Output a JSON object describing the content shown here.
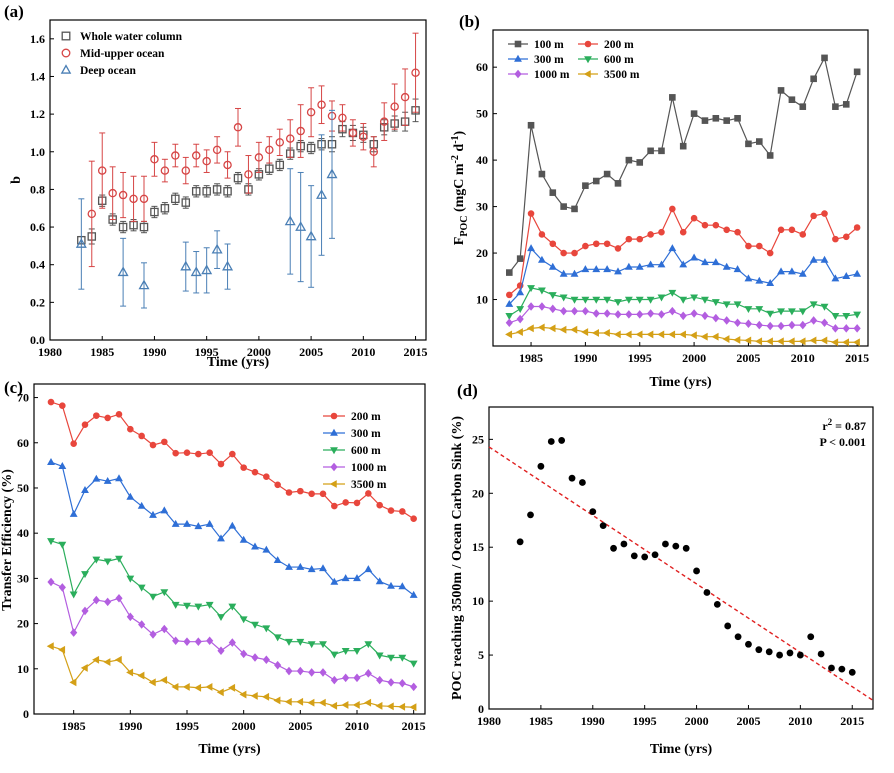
{
  "chart_data": [
    {
      "id": "a",
      "type": "scatter",
      "panel_label": "(a)",
      "xlabel": "Time (yrs)",
      "ylabel": "b",
      "xlim": [
        1980,
        2016
      ],
      "ylim": [
        0.0,
        1.7
      ],
      "xticks": [
        1980,
        1985,
        1990,
        1995,
        2000,
        2005,
        2010,
        2015
      ],
      "yticks": [
        0.0,
        0.2,
        0.4,
        0.6,
        0.8,
        1.0,
        1.2,
        1.4,
        1.6
      ],
      "legend_position": "top-left",
      "series": [
        {
          "name": "Whole water column",
          "marker": "square",
          "color": "#555555",
          "x": [
            1983,
            1984,
            1985,
            1986,
            1987,
            1988,
            1989,
            1990,
            1991,
            1992,
            1993,
            1994,
            1995,
            1996,
            1997,
            1998,
            1999,
            2000,
            2001,
            2002,
            2003,
            2004,
            2005,
            2006,
            2007,
            2008,
            2009,
            2010,
            2011,
            2012,
            2013,
            2014,
            2015
          ],
          "y": [
            0.53,
            0.55,
            0.74,
            0.64,
            0.6,
            0.61,
            0.6,
            0.68,
            0.7,
            0.75,
            0.73,
            0.79,
            0.79,
            0.8,
            0.79,
            0.86,
            0.8,
            0.88,
            0.91,
            0.93,
            0.99,
            1.03,
            1.02,
            1.04,
            1.04,
            1.12,
            1.1,
            1.09,
            1.04,
            1.13,
            1.15,
            1.16,
            1.22
          ],
          "err": [
            0.02,
            0.04,
            0.03,
            0.03,
            0.03,
            0.03,
            0.03,
            0.03,
            0.03,
            0.03,
            0.03,
            0.03,
            0.03,
            0.03,
            0.03,
            0.03,
            0.03,
            0.03,
            0.03,
            0.03,
            0.03,
            0.03,
            0.03,
            0.03,
            0.04,
            0.04,
            0.04,
            0.04,
            0.04,
            0.04,
            0.04,
            0.05,
            0.06
          ]
        },
        {
          "name": "Mid-upper ocean",
          "marker": "circle",
          "color": "#d64545",
          "x": [
            1984,
            1985,
            1986,
            1987,
            1988,
            1989,
            1990,
            1991,
            1992,
            1993,
            1994,
            1995,
            1996,
            1997,
            1998,
            1999,
            2000,
            2001,
            2002,
            2003,
            2004,
            2005,
            2006,
            2007,
            2008,
            2009,
            2010,
            2011,
            2012,
            2013,
            2014,
            2015
          ],
          "y": [
            0.67,
            0.9,
            0.78,
            0.77,
            0.75,
            0.75,
            0.96,
            0.9,
            0.98,
            0.9,
            0.98,
            0.95,
            1.01,
            0.93,
            1.13,
            0.88,
            0.97,
            1.01,
            1.05,
            1.07,
            1.11,
            1.21,
            1.25,
            1.19,
            1.18,
            1.1,
            1.08,
            1.0,
            1.16,
            1.24,
            1.29,
            1.42
          ],
          "err": [
            0.28,
            0.2,
            0.14,
            0.12,
            0.12,
            0.12,
            0.09,
            0.06,
            0.06,
            0.07,
            0.06,
            0.06,
            0.07,
            0.07,
            0.1,
            0.1,
            0.08,
            0.07,
            0.07,
            0.1,
            0.14,
            0.13,
            0.1,
            0.08,
            0.07,
            0.07,
            0.07,
            0.08,
            0.1,
            0.12,
            0.15,
            0.21
          ]
        },
        {
          "name": "Deep ocean",
          "marker": "triangle",
          "color": "#4a7fb5",
          "x": [
            1983,
            1987,
            1989,
            1993,
            1994,
            1995,
            1996,
            1997,
            2003,
            2004,
            2005,
            2006,
            2007
          ],
          "y": [
            0.51,
            0.36,
            0.29,
            0.39,
            0.36,
            0.37,
            0.48,
            0.39,
            0.63,
            0.6,
            0.55,
            0.77,
            0.88
          ],
          "err": [
            0.24,
            0.18,
            0.12,
            0.13,
            0.11,
            0.12,
            0.1,
            0.12,
            0.28,
            0.29,
            0.27,
            0.32,
            0.34
          ]
        }
      ]
    },
    {
      "id": "b",
      "type": "line",
      "panel_label": "(b)",
      "xlabel": "Time (yrs)",
      "ylabel_main": "F",
      "ylabel_sub": "POC",
      "ylabel_units": " (mgC m",
      "ylabel_exp1": "-2",
      "ylabel_mid": " d",
      "ylabel_exp2": "-1",
      "ylabel_end": ")",
      "xlim": [
        1981.5,
        2016
      ],
      "ylim": [
        0,
        68
      ],
      "xticks": [
        1985,
        1990,
        1995,
        2000,
        2005,
        2010,
        2015
      ],
      "yticks": [
        10,
        20,
        30,
        40,
        50,
        60
      ],
      "legend_position": "top-left",
      "x": [
        1983,
        1984,
        1985,
        1986,
        1987,
        1988,
        1989,
        1990,
        1991,
        1992,
        1993,
        1994,
        1995,
        1996,
        1997,
        1998,
        1999,
        2000,
        2001,
        2002,
        2003,
        2004,
        2005,
        2006,
        2007,
        2008,
        2009,
        2010,
        2011,
        2012,
        2013,
        2014,
        2015
      ],
      "series": [
        {
          "name": "100 m",
          "marker": "square",
          "color": "#555555",
          "values": [
            15.8,
            18.8,
            47.5,
            37.0,
            33.0,
            30.0,
            29.5,
            34.5,
            35.5,
            37.0,
            35.0,
            40.0,
            39.5,
            42.0,
            42.0,
            53.5,
            43.0,
            50.0,
            48.5,
            49.0,
            48.5,
            49.0,
            43.5,
            44.0,
            41.0,
            55.0,
            53.0,
            51.5,
            57.5,
            62.0,
            51.5,
            52.0,
            59.0
          ]
        },
        {
          "name": "200 m",
          "marker": "circle",
          "color": "#e8463c",
          "values": [
            11.0,
            13.0,
            28.5,
            24.0,
            22.0,
            20.0,
            20.0,
            21.5,
            22.0,
            22.0,
            21.0,
            23.0,
            23.0,
            24.0,
            24.5,
            29.5,
            24.5,
            27.5,
            26.0,
            26.0,
            25.0,
            24.5,
            21.5,
            21.5,
            20.0,
            25.0,
            25.0,
            24.0,
            28.0,
            28.5,
            23.0,
            23.5,
            25.5
          ]
        },
        {
          "name": "300 m",
          "marker": "triangle-up",
          "color": "#2f6fd6",
          "values": [
            9.0,
            11.5,
            21.0,
            18.5,
            17.0,
            15.5,
            15.5,
            16.5,
            16.5,
            16.5,
            16.0,
            17.0,
            17.0,
            17.5,
            17.5,
            21.0,
            17.5,
            19.0,
            18.0,
            18.0,
            17.0,
            16.5,
            14.5,
            14.0,
            13.5,
            16.0,
            16.0,
            15.5,
            18.5,
            18.5,
            14.5,
            15.0,
            15.5
          ]
        },
        {
          "name": "600 m",
          "marker": "triangle-down",
          "color": "#2bae5c",
          "values": [
            6.5,
            8.0,
            12.5,
            12.0,
            11.0,
            10.5,
            10.0,
            10.0,
            10.0,
            10.0,
            9.5,
            10.0,
            10.0,
            10.0,
            10.5,
            11.5,
            10.0,
            10.5,
            10.0,
            9.5,
            9.0,
            9.0,
            8.0,
            8.0,
            7.0,
            7.5,
            7.5,
            7.5,
            9.0,
            8.5,
            6.5,
            6.5,
            6.8
          ]
        },
        {
          "name": "1000 m",
          "marker": "diamond",
          "color": "#b35ee0",
          "values": [
            5.0,
            5.8,
            8.5,
            8.5,
            8.0,
            7.5,
            7.5,
            7.5,
            7.0,
            7.0,
            6.8,
            6.8,
            6.8,
            7.0,
            6.8,
            7.5,
            6.5,
            7.0,
            6.5,
            6.0,
            5.5,
            5.0,
            4.8,
            4.5,
            4.3,
            4.3,
            4.5,
            4.5,
            5.5,
            5.0,
            3.8,
            3.8,
            3.8
          ]
        },
        {
          "name": "3500 m",
          "marker": "triangle-left",
          "color": "#d4a017",
          "values": [
            2.5,
            3.0,
            3.8,
            4.0,
            3.8,
            3.5,
            3.5,
            3.0,
            2.8,
            2.8,
            2.5,
            2.5,
            2.5,
            2.5,
            2.5,
            2.5,
            2.5,
            2.3,
            2.0,
            2.0,
            1.5,
            1.3,
            1.2,
            1.0,
            1.0,
            1.0,
            1.0,
            1.0,
            1.2,
            1.2,
            0.8,
            0.8,
            0.8
          ]
        }
      ]
    },
    {
      "id": "c",
      "type": "line",
      "panel_label": "(c)",
      "xlabel": "Time (yrs)",
      "ylabel": "Transfer Efficiency (%)",
      "xlim": [
        1981.5,
        2016
      ],
      "ylim": [
        0,
        73
      ],
      "xticks": [
        1985,
        1990,
        1995,
        2000,
        2005,
        2010,
        2015
      ],
      "yticks": [
        0,
        10,
        20,
        30,
        40,
        50,
        60,
        70
      ],
      "legend_position": "top-right",
      "x": [
        1983,
        1984,
        1985,
        1986,
        1987,
        1988,
        1989,
        1990,
        1991,
        1992,
        1993,
        1994,
        1995,
        1996,
        1997,
        1998,
        1999,
        2000,
        2001,
        2002,
        2003,
        2004,
        2005,
        2006,
        2007,
        2008,
        2009,
        2010,
        2011,
        2012,
        2013,
        2014,
        2015
      ],
      "series": [
        {
          "name": "200 m",
          "marker": "circle",
          "color": "#e8463c",
          "values": [
            69.0,
            68.2,
            59.8,
            64.0,
            66.0,
            65.5,
            66.3,
            63.0,
            61.5,
            59.5,
            60.2,
            57.7,
            57.8,
            57.5,
            57.8,
            55.3,
            57.5,
            54.5,
            53.5,
            52.5,
            50.7,
            49.0,
            49.3,
            48.7,
            48.7,
            46.0,
            46.8,
            46.7,
            48.8,
            46.2,
            45.0,
            44.8,
            43.2
          ]
        },
        {
          "name": "300 m",
          "marker": "triangle-up",
          "color": "#2f6fd6",
          "values": [
            55.7,
            54.8,
            44.2,
            49.5,
            52.0,
            51.5,
            52.1,
            48.0,
            46.0,
            44.0,
            45.0,
            42.0,
            42.0,
            41.5,
            42.0,
            38.8,
            41.6,
            38.5,
            37.0,
            36.3,
            34.0,
            32.5,
            32.5,
            32.0,
            32.2,
            29.2,
            30.0,
            30.0,
            32.0,
            29.3,
            28.3,
            28.2,
            26.3
          ]
        },
        {
          "name": "600 m",
          "marker": "triangle-down",
          "color": "#2bae5c",
          "values": [
            38.3,
            37.5,
            26.5,
            31.0,
            34.2,
            33.8,
            34.4,
            30.0,
            28.0,
            26.0,
            27.0,
            24.2,
            24.0,
            23.8,
            24.2,
            21.5,
            23.8,
            21.0,
            19.8,
            19.0,
            17.0,
            16.0,
            16.0,
            15.5,
            15.5,
            13.2,
            14.0,
            14.0,
            15.5,
            13.0,
            12.5,
            12.5,
            11.2
          ]
        },
        {
          "name": "1000 m",
          "marker": "diamond",
          "color": "#b35ee0",
          "values": [
            29.2,
            28.0,
            18.0,
            22.8,
            25.2,
            24.8,
            25.6,
            21.5,
            19.8,
            17.6,
            18.8,
            16.2,
            16.0,
            16.0,
            16.2,
            14.0,
            15.8,
            13.3,
            12.5,
            12.0,
            10.8,
            9.5,
            9.5,
            9.2,
            9.2,
            7.5,
            8.0,
            8.0,
            9.0,
            7.5,
            7.0,
            6.8,
            6.0
          ]
        },
        {
          "name": "3500 m",
          "marker": "triangle-left",
          "color": "#d4a017",
          "values": [
            15.0,
            14.2,
            7.0,
            10.2,
            12.0,
            11.5,
            12.0,
            9.2,
            8.5,
            7.0,
            7.5,
            6.0,
            6.0,
            5.8,
            6.0,
            4.8,
            5.8,
            4.3,
            4.0,
            3.8,
            3.0,
            2.7,
            2.7,
            2.5,
            2.5,
            1.8,
            2.0,
            2.0,
            2.5,
            1.8,
            1.7,
            1.6,
            1.5
          ]
        }
      ]
    },
    {
      "id": "d",
      "type": "scatter",
      "panel_label": "(d)",
      "xlabel": "Time (yrs)",
      "ylabel": "POC reaching 3500m / Ocean Carbon Sink (%)",
      "xlim": [
        1980,
        2017
      ],
      "ylim": [
        0,
        28
      ],
      "xticks": [
        1980,
        1985,
        1990,
        1995,
        2000,
        2005,
        2010,
        2015
      ],
      "yticks": [
        0,
        5,
        10,
        15,
        20,
        25
      ],
      "annotation_r2_main": "r",
      "annotation_r2_exp": "2",
      "annotation_r2_value": " = 0.87",
      "annotation_p": "P < 0.001",
      "trendline": {
        "x": [
          1980,
          2017
        ],
        "y": [
          24.3,
          0.8
        ],
        "color": "#e02020",
        "style": "dashed"
      },
      "series": [
        {
          "name": "POC reaching 3500m / Ocean Carbon Sink",
          "marker": "circle",
          "color": "#000000",
          "x": [
            1983,
            1984,
            1985,
            1986,
            1987,
            1988,
            1989,
            1990,
            1991,
            1992,
            1993,
            1994,
            1995,
            1996,
            1997,
            1998,
            1999,
            2000,
            2001,
            2002,
            2003,
            2004,
            2005,
            2006,
            2007,
            2008,
            2009,
            2010,
            2011,
            2012,
            2013,
            2014,
            2015
          ],
          "y": [
            15.5,
            18.0,
            22.5,
            24.8,
            24.9,
            21.4,
            21.0,
            18.3,
            17.0,
            14.9,
            15.3,
            14.2,
            14.1,
            14.3,
            15.3,
            15.1,
            14.9,
            12.8,
            10.8,
            9.7,
            7.7,
            6.7,
            6.0,
            5.5,
            5.3,
            5.0,
            5.2,
            5.0,
            6.7,
            5.1,
            3.8,
            3.7,
            3.4
          ]
        }
      ]
    }
  ]
}
